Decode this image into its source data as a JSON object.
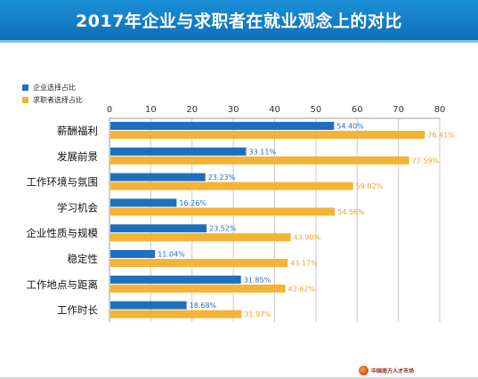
{
  "title": "2017年企业与求职者在就业观念上的对比",
  "colors": {
    "enterprise": "#1f6fbf",
    "jobseeker": "#f5b335",
    "title_bar": "#0f79c4"
  },
  "logo_text": "中国南方人才市场",
  "chart_data": {
    "type": "bar",
    "orientation": "horizontal",
    "categories": [
      "薪酬福利",
      "发展前景",
      "工作环境与氛围",
      "学习机会",
      "企业性质与规模",
      "稳定性",
      "工作地点与距离",
      "工作时长"
    ],
    "series": [
      {
        "name": "企业选择占比",
        "values": [
          54.4,
          33.11,
          23.23,
          16.26,
          23.52,
          11.04,
          31.85,
          18.68
        ],
        "labels": [
          "54.40%",
          "33.11%",
          "23.23%",
          "16.26%",
          "23.52%",
          "11.04%",
          "31.85%",
          "18.68%"
        ]
      },
      {
        "name": "求职者选择占比",
        "values": [
          76.41,
          72.59,
          59.02,
          54.56,
          43.9,
          43.17,
          42.62,
          31.97
        ],
        "labels": [
          "76.41%",
          "72.59%",
          "59.02%",
          "54.56%",
          "43.90%",
          "43.17%",
          "42.62%",
          "31.97%"
        ]
      }
    ],
    "xlim": [
      0,
      80
    ],
    "x_ticks": [
      0,
      10,
      20,
      30,
      40,
      50,
      60,
      70,
      80
    ],
    "x_axis_position": "top",
    "legend_position": "top-left",
    "grid": "vertical"
  }
}
